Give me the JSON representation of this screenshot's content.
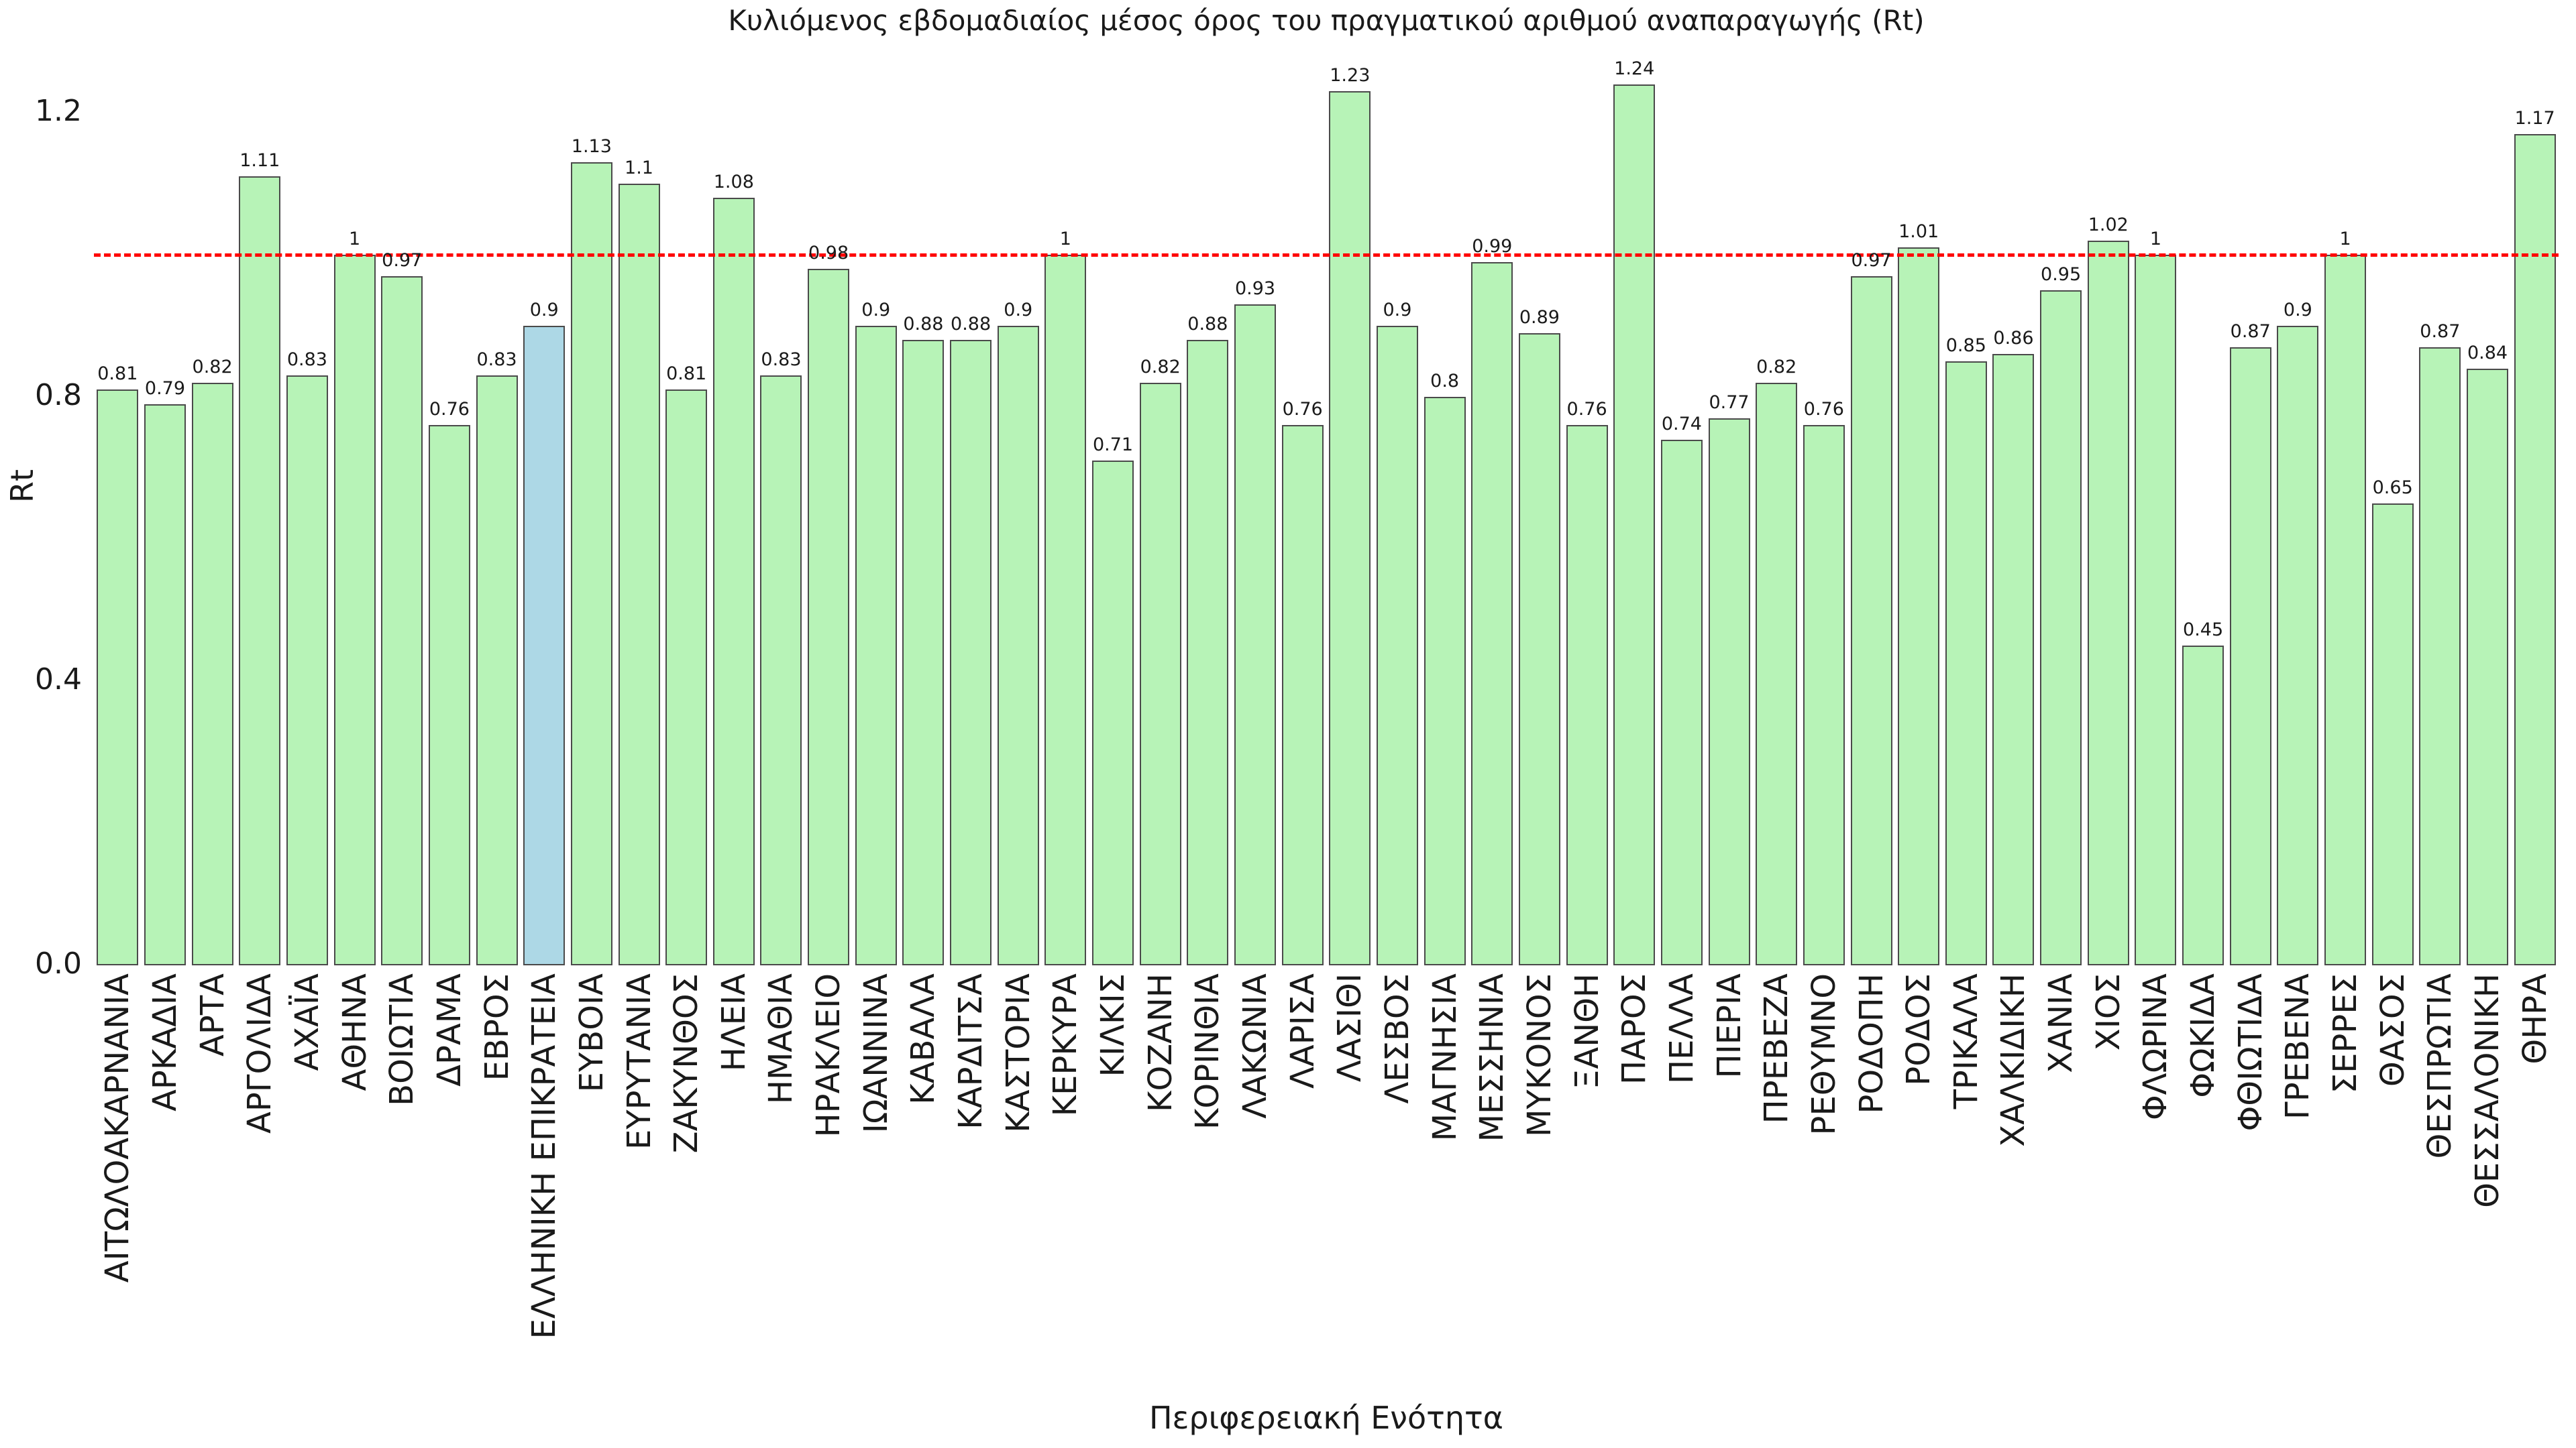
{
  "chart_data": {
    "type": "bar",
    "title": "Κυλιόμενος εβδομαδιαίος μέσος όρος του πραγματικού αριθμού αναπαραγωγής (Rt)",
    "xlabel": "Περιφερειακή Ενότητα",
    "ylabel": "Rt",
    "ylim": [
      0,
      1.28
    ],
    "grid": false,
    "legend": false,
    "yticks": [
      {
        "label": "0.0",
        "value": 0.0
      },
      {
        "label": "0.4",
        "value": 0.4
      },
      {
        "label": "0.8",
        "value": 0.8
      },
      {
        "label": "1.2",
        "value": 1.2
      }
    ],
    "reference_line": {
      "value": 1.0,
      "color": "#ff0000",
      "style": "dashed"
    },
    "bar_style": {
      "fill": "#b7f3b7",
      "highlight_fill": "#add8e6",
      "border": "#4a4a4a"
    },
    "highlight_category": "ΕΛΛΗΝΙΚΗ ΕΠΙΚΡΑΤΕΙΑ",
    "categories": [
      "ΑΙΤΩΛΟΑΚΑΡΝΑΝΙΑ",
      "ΑΡΚΑΔΙΑ",
      "ΑΡΤΑ",
      "ΑΡΓΟΛΙΔΑ",
      "ΑΧΑΪΑ",
      "ΑΘΗΝΑ",
      "ΒΟΙΩΤΙΑ",
      "ΔΡΑΜΑ",
      "ΕΒΡΟΣ",
      "ΕΛΛΗΝΙΚΗ ΕΠΙΚΡΑΤΕΙΑ",
      "ΕΥΒΟΙΑ",
      "ΕΥΡΥΤΑΝΙΑ",
      "ΖΑΚΥΝΘΟΣ",
      "ΗΛΕΙΑ",
      "ΗΜΑΘΙΑ",
      "ΗΡΑΚΛΕΙΟ",
      "ΙΩΑΝΝΙΝΑ",
      "ΚΑΒΑΛΑ",
      "ΚΑΡΔΙΤΣΑ",
      "ΚΑΣΤΟΡΙΑ",
      "ΚΕΡΚΥΡΑ",
      "ΚΙΛΚΙΣ",
      "ΚΟΖΑΝΗ",
      "ΚΟΡΙΝΘΙΑ",
      "ΛΑΚΩΝΙΑ",
      "ΛΑΡΙΣΑ",
      "ΛΑΣΙΘΙ",
      "ΛΕΣΒΟΣ",
      "ΜΑΓΝΗΣΙΑ",
      "ΜΕΣΣΗΝΙΑ",
      "ΜΥΚΟΝΟΣ",
      "ΞΑΝΘΗ",
      "ΠΑΡΟΣ",
      "ΠΕΛΛΑ",
      "ΠΙΕΡΙΑ",
      "ΠΡΕΒΕΖΑ",
      "ΡΕΘΥΜΝΟ",
      "ΡΟΔΟΠΗ",
      "ΡΟΔΟΣ",
      "ΤΡΙΚΑΛΑ",
      "ΧΑΛΚΙΔΙΚΗ",
      "ΧΑΝΙΑ",
      "ΧΙΟΣ",
      "ΦΛΩΡΙΝΑ",
      "ΦΩΚΙΔΑ",
      "ΦΘΙΩΤΙΔΑ",
      "ΓΡΕΒΕΝΑ",
      "ΣΕΡΡΕΣ",
      "ΘΑΣΟΣ",
      "ΘΕΣΠΡΩΤΙΑ",
      "ΘΕΣΣΑΛΟΝΙΚΗ",
      "ΘΗΡΑ"
    ],
    "values": [
      0.81,
      0.79,
      0.82,
      1.11,
      0.83,
      1,
      0.97,
      0.76,
      0.83,
      0.9,
      1.13,
      1.1,
      0.81,
      1.08,
      0.83,
      0.98,
      0.9,
      0.88,
      0.88,
      0.9,
      1,
      0.71,
      0.82,
      0.88,
      0.93,
      0.76,
      1.23,
      0.9,
      0.8,
      0.99,
      0.89,
      0.76,
      1.24,
      0.74,
      0.77,
      0.82,
      0.76,
      0.97,
      1.01,
      0.85,
      0.86,
      0.95,
      1.02,
      1,
      0.45,
      0.87,
      0.9,
      1,
      0.65,
      0.87,
      0.84,
      1.17
    ]
  }
}
